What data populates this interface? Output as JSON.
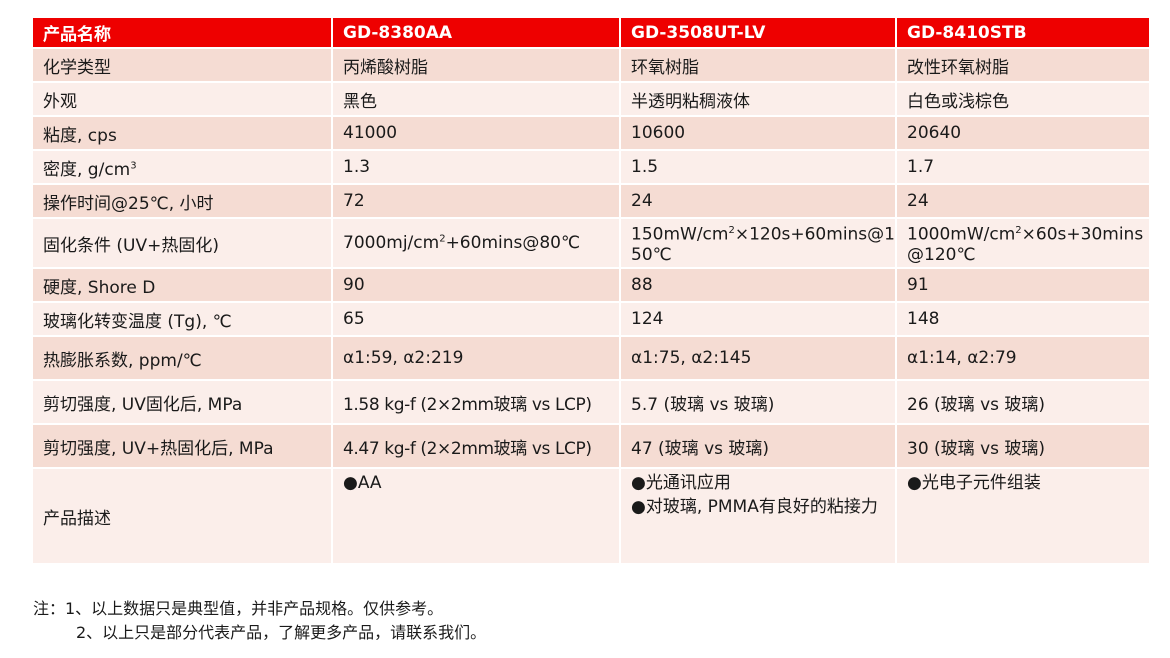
{
  "header": {
    "col0": "产品名称",
    "col1": "GD-8380AA",
    "col2": "GD-3508UT-LV",
    "col3": "GD-8410STB"
  },
  "rows": [
    {
      "label": "化学类型",
      "v1": "丙烯酸树脂",
      "v2": "环氧树脂",
      "v3": "改性环氧树脂"
    },
    {
      "label": "外观",
      "v1": "黑色",
      "v2": "半透明粘稠液体",
      "v3": "白色或浅棕色"
    },
    {
      "label": "粘度, cps",
      "v1": "41000",
      "v2": "10600",
      "v3": "20640"
    },
    {
      "label_pre": "密度, g/cm",
      "label_sup": "3",
      "v1": "1.3",
      "v2": "1.5",
      "v3": "1.7"
    },
    {
      "label": "操作时间@25℃, 小时",
      "v1": "72",
      "v2": "24",
      "v3": "24"
    },
    {
      "label": "固化条件 (UV+热固化)",
      "v1_pre": "7000mj/cm",
      "v1_sup": "2",
      "v1_post": "+60mins@80℃",
      "v2_pre": "150mW/cm",
      "v2_sup": "2",
      "v2_post": "×120s+60mins@150℃",
      "v3_pre": "1000mW/cm",
      "v3_sup": "2",
      "v3_post": "×60s+30mins@120℃"
    },
    {
      "label": "硬度, Shore D",
      "v1": "90",
      "v2": "88",
      "v3": "91"
    },
    {
      "label": "玻璃化转变温度 (Tg), ℃",
      "v1": "65",
      "v2": "124",
      "v3": "148"
    },
    {
      "label": "热膨胀系数, ppm/℃",
      "v1": "α1:59, α2:219",
      "v2": "α1:75, α2:145",
      "v3": "α1:14, α2:79"
    },
    {
      "label": "剪切强度, UV固化后, MPa",
      "v1": "1.58 kg-f (2×2mm玻璃 vs LCP)",
      "v2": "5.7  (玻璃 vs 玻璃)",
      "v3": "26  (玻璃 vs 玻璃)"
    },
    {
      "label": "剪切强度, UV+热固化后, MPa",
      "v1": "4.47 kg-f (2×2mm玻璃 vs LCP)",
      "v2": "47  (玻璃 vs 玻璃)",
      "v3": "30  (玻璃 vs 玻璃)"
    },
    {
      "label": "产品描述",
      "v1": [
        "●AA"
      ],
      "v2": [
        "●光通讯应用",
        "●对玻璃, PMMA有良好的粘接力"
      ],
      "v3": [
        "●光电子元件组装"
      ]
    }
  ],
  "notes": {
    "line1": "注：1、以上数据只是典型值，并非产品规格。仅供参考。",
    "line2": "2、以上只是部分代表产品，了解更多产品，请联系我们。"
  }
}
